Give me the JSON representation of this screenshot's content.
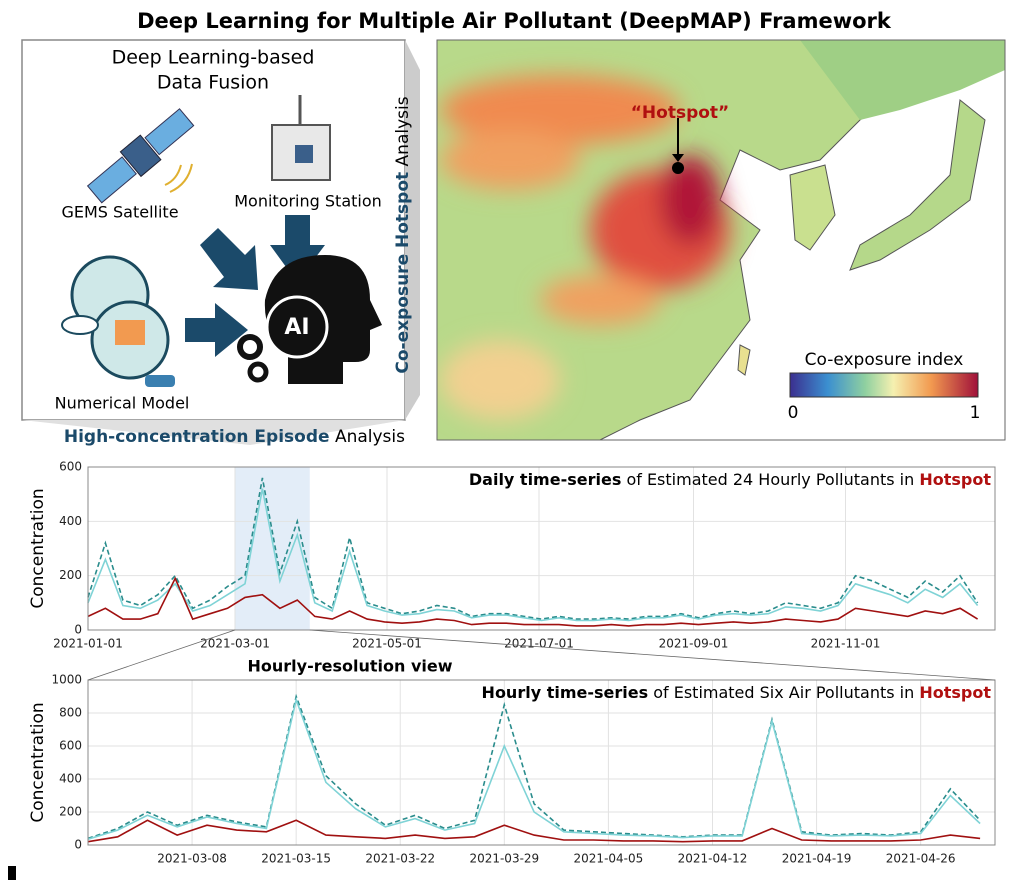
{
  "title": "Deep Learning for Multiple Air Pollutant (DeepMAP) Framework",
  "fusion": {
    "title": [
      "Deep Learning-based",
      "Data Fusion"
    ],
    "sources": [
      "GEMS Satellite",
      "Monitoring Station",
      "Numerical Model"
    ],
    "ai_label": "AI"
  },
  "side_label": {
    "bold": "Co-exposure Hotspot",
    "rest": "Analysis"
  },
  "bottom_label": {
    "bold": "High-concentration Episode",
    "rest": "Analysis"
  },
  "map": {
    "hotspot": "“Hotspot”",
    "colorbar": {
      "title": "Co-exposure index",
      "min": 0,
      "max": 1
    }
  },
  "zoom_label": "Hourly-resolution view",
  "chart_data": [
    {
      "type": "line",
      "title": [
        "Daily time-series",
        "of Estimated 24 Hourly Pollutants in",
        "Hotspot"
      ],
      "ylabel": "Concentration",
      "x": [
        "2021-01-01",
        "2021-01-08",
        "2021-01-15",
        "2021-01-22",
        "2021-01-29",
        "2021-02-05",
        "2021-02-12",
        "2021-02-19",
        "2021-02-26",
        "2021-03-05",
        "2021-03-12",
        "2021-03-19",
        "2021-03-26",
        "2021-04-02",
        "2021-04-09",
        "2021-04-16",
        "2021-04-23",
        "2021-04-30",
        "2021-05-07",
        "2021-05-14",
        "2021-05-21",
        "2021-05-28",
        "2021-06-04",
        "2021-06-11",
        "2021-06-18",
        "2021-06-25",
        "2021-07-02",
        "2021-07-09",
        "2021-07-16",
        "2021-07-23",
        "2021-07-30",
        "2021-08-06",
        "2021-08-13",
        "2021-08-20",
        "2021-08-27",
        "2021-09-03",
        "2021-09-10",
        "2021-09-17",
        "2021-09-24",
        "2021-10-01",
        "2021-10-08",
        "2021-10-15",
        "2021-10-22",
        "2021-10-29",
        "2021-11-05",
        "2021-11-12",
        "2021-11-19",
        "2021-11-26",
        "2021-12-03",
        "2021-12-10",
        "2021-12-17",
        "2021-12-24"
      ],
      "series": [
        {
          "color": "#2a8c8c",
          "dash": true,
          "values": [
            120,
            320,
            110,
            90,
            130,
            200,
            80,
            110,
            160,
            200,
            560,
            210,
            400,
            120,
            80,
            340,
            100,
            80,
            60,
            70,
            90,
            80,
            50,
            60,
            60,
            50,
            40,
            50,
            40,
            40,
            45,
            40,
            50,
            50,
            60,
            45,
            60,
            70,
            60,
            70,
            100,
            90,
            80,
            100,
            200,
            180,
            150,
            120,
            180,
            140,
            200,
            100
          ]
        },
        {
          "color": "#7fd3d6",
          "dash": false,
          "values": [
            100,
            260,
            90,
            80,
            110,
            170,
            70,
            90,
            130,
            170,
            520,
            180,
            350,
            100,
            70,
            290,
            90,
            70,
            55,
            60,
            75,
            70,
            45,
            55,
            55,
            45,
            35,
            45,
            35,
            35,
            40,
            35,
            45,
            45,
            55,
            40,
            55,
            60,
            55,
            60,
            85,
            80,
            70,
            90,
            170,
            150,
            130,
            100,
            150,
            120,
            170,
            90
          ]
        },
        {
          "color": "#a01010",
          "dash": false,
          "values": [
            50,
            80,
            40,
            40,
            60,
            190,
            40,
            60,
            80,
            120,
            130,
            80,
            110,
            50,
            40,
            70,
            40,
            30,
            25,
            30,
            40,
            35,
            20,
            25,
            25,
            20,
            20,
            20,
            15,
            15,
            20,
            15,
            20,
            20,
            25,
            20,
            25,
            30,
            25,
            30,
            40,
            35,
            30,
            40,
            80,
            70,
            60,
            50,
            70,
            60,
            80,
            40
          ]
        }
      ],
      "xlim": [
        "2021-01-01",
        "2021-12-31"
      ],
      "xticks": [
        "2021-01-01",
        "2021-03-01",
        "2021-05-01",
        "2021-07-01",
        "2021-09-01",
        "2021-11-01"
      ],
      "ylim": [
        0,
        600
      ],
      "yticks": [
        0,
        200,
        400,
        600
      ],
      "grid": true,
      "highlight": [
        "2021-03-01",
        "2021-03-31"
      ]
    },
    {
      "type": "line",
      "title": [
        "Hourly time-series",
        "of Estimated Six Air Pollutants in",
        "Hotspot"
      ],
      "ylabel": "Concentration",
      "x": [
        "2021-03-01",
        "2021-03-03",
        "2021-03-05",
        "2021-03-07",
        "2021-03-09",
        "2021-03-11",
        "2021-03-13",
        "2021-03-15",
        "2021-03-17",
        "2021-03-19",
        "2021-03-21",
        "2021-03-23",
        "2021-03-25",
        "2021-03-27",
        "2021-03-29",
        "2021-03-31",
        "2021-04-02",
        "2021-04-04",
        "2021-04-06",
        "2021-04-08",
        "2021-04-10",
        "2021-04-12",
        "2021-04-14",
        "2021-04-16",
        "2021-04-18",
        "2021-04-20",
        "2021-04-22",
        "2021-04-24",
        "2021-04-26",
        "2021-04-28",
        "2021-04-30"
      ],
      "series": [
        {
          "color": "#2a8c8c",
          "dash": true,
          "values": [
            40,
            100,
            200,
            120,
            180,
            140,
            110,
            900,
            420,
            250,
            120,
            180,
            100,
            150,
            850,
            250,
            90,
            80,
            70,
            60,
            50,
            60,
            60,
            760,
            80,
            60,
            70,
            60,
            80,
            340,
            150
          ]
        },
        {
          "color": "#7fd3d6",
          "dash": false,
          "values": [
            35,
            90,
            180,
            110,
            170,
            130,
            100,
            880,
            380,
            220,
            110,
            160,
            90,
            130,
            600,
            200,
            80,
            70,
            60,
            55,
            45,
            55,
            55,
            750,
            70,
            55,
            60,
            55,
            70,
            300,
            130
          ]
        },
        {
          "color": "#a01010",
          "dash": false,
          "values": [
            20,
            50,
            150,
            60,
            120,
            90,
            80,
            150,
            60,
            50,
            40,
            60,
            40,
            50,
            120,
            60,
            30,
            30,
            25,
            25,
            20,
            25,
            25,
            100,
            30,
            25,
            25,
            25,
            30,
            60,
            40
          ]
        }
      ],
      "xlim": [
        "2021-03-01",
        "2021-05-01"
      ],
      "xticks": [
        "2021-03-08",
        "2021-03-15",
        "2021-03-22",
        "2021-03-29",
        "2021-04-05",
        "2021-04-12",
        "2021-04-19",
        "2021-04-26"
      ],
      "ylim": [
        0,
        1000
      ],
      "yticks": [
        0,
        200,
        400,
        600,
        800,
        1000
      ],
      "grid": true
    }
  ]
}
